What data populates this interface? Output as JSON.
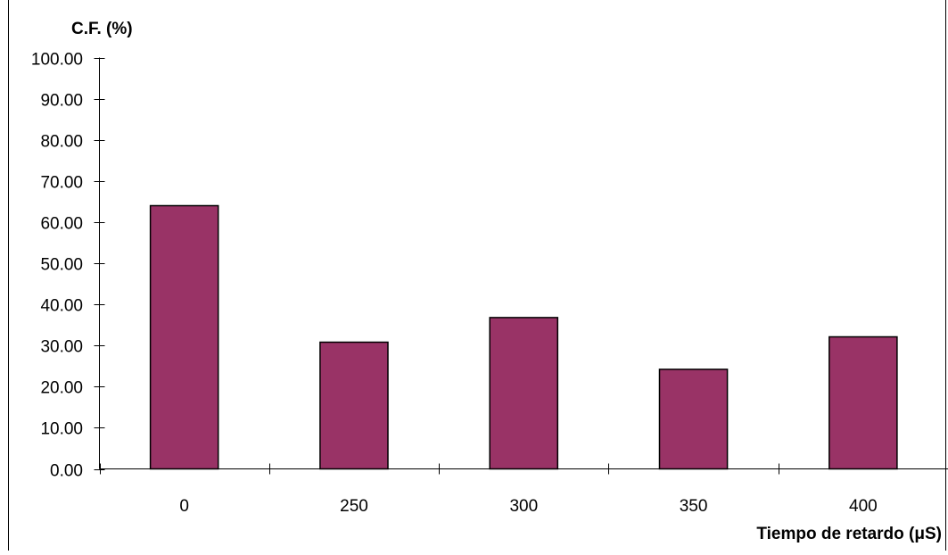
{
  "chart_data": {
    "type": "bar",
    "ylabel": "C.F. (%)",
    "xlabel": "Tiempo de retardo (μS)",
    "categories": [
      "0",
      "250",
      "300",
      "350",
      "400"
    ],
    "values": [
      64.0,
      30.8,
      36.8,
      24.2,
      32.1
    ],
    "ylim": [
      0,
      100
    ],
    "yticks": [
      "0.00",
      "10.00",
      "20.00",
      "30.00",
      "40.00",
      "50.00",
      "60.00",
      "70.00",
      "80.00",
      "90.00",
      "100.00"
    ],
    "grid": false,
    "legend": "none",
    "bar_color": "#993366",
    "bar_edge_color": "#000000"
  }
}
